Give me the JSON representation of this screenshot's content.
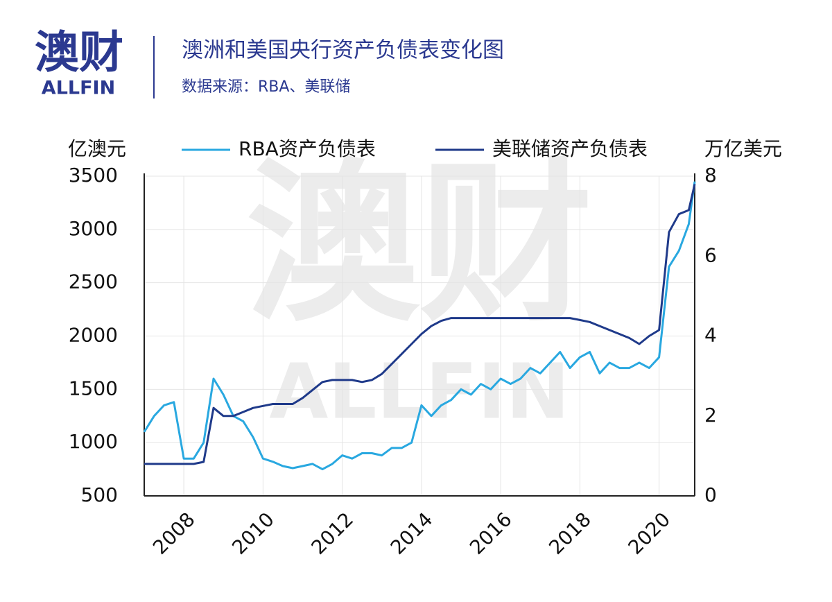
{
  "logo": {
    "mark": "澳财",
    "name": "ALLFIN"
  },
  "chart_data": {
    "type": "line",
    "title": "澳洲和美国央行资产负债表变化图",
    "subtitle": "数据来源：RBA、美联储",
    "y_label": "亿澳元",
    "y2_label": "万亿美元",
    "x": [
      2007,
      2007.25,
      2007.5,
      2007.75,
      2008,
      2008.25,
      2008.5,
      2008.75,
      2009,
      2009.25,
      2009.5,
      2009.75,
      2010,
      2010.25,
      2010.5,
      2010.75,
      2011,
      2011.25,
      2011.5,
      2011.75,
      2012,
      2012.25,
      2012.5,
      2012.75,
      2013,
      2013.25,
      2013.5,
      2013.75,
      2014,
      2014.25,
      2014.5,
      2014.75,
      2015,
      2015.25,
      2015.5,
      2015.75,
      2016,
      2016.25,
      2016.5,
      2016.75,
      2017,
      2017.25,
      2017.5,
      2017.75,
      2018,
      2018.25,
      2018.5,
      2018.75,
      2019,
      2019.25,
      2019.5,
      2019.75,
      2020,
      2020.25,
      2020.5,
      2020.75,
      2020.9
    ],
    "xlim": [
      2007,
      2020.9
    ],
    "xticks": [
      2008,
      2010,
      2012,
      2014,
      2016,
      2018,
      2020
    ],
    "ylim": [
      500,
      3500
    ],
    "yticks": [
      500,
      1000,
      1500,
      2000,
      2500,
      3000,
      3500
    ],
    "y2lim": [
      0,
      8
    ],
    "y2ticks": [
      0,
      2,
      4,
      6,
      8
    ],
    "grid": true,
    "series": [
      {
        "name": "RBA资产负债表",
        "color": "#29a8e0",
        "values": [
          1100,
          1250,
          1350,
          1380,
          850,
          850,
          1000,
          1600,
          1450,
          1250,
          1200,
          1050,
          850,
          820,
          780,
          760,
          780,
          800,
          750,
          800,
          880,
          850,
          900,
          900,
          880,
          950,
          950,
          1000,
          1350,
          1250,
          1350,
          1400,
          1500,
          1450,
          1550,
          1500,
          1600,
          1550,
          1600,
          1700,
          1650,
          1750,
          1850,
          1700,
          1800,
          1850,
          1650,
          1750,
          1700,
          1700,
          1750,
          1700,
          1800,
          2650,
          2800,
          3050,
          3450
        ]
      },
      {
        "name": "美联储资产负债表",
        "color": "#1f3a8a",
        "axis": "y2",
        "values": [
          0.8,
          0.8,
          0.8,
          0.8,
          0.8,
          0.8,
          0.85,
          2.2,
          2.0,
          2.0,
          2.1,
          2.2,
          2.25,
          2.3,
          2.3,
          2.3,
          2.45,
          2.65,
          2.85,
          2.9,
          2.9,
          2.9,
          2.85,
          2.9,
          3.05,
          3.3,
          3.55,
          3.8,
          4.05,
          4.25,
          4.38,
          4.45,
          4.45,
          4.45,
          4.45,
          4.45,
          4.45,
          4.45,
          4.45,
          4.45,
          4.45,
          4.45,
          4.45,
          4.45,
          4.4,
          4.35,
          4.25,
          4.15,
          4.05,
          3.95,
          3.8,
          4.0,
          4.15,
          6.6,
          7.05,
          7.15,
          7.8
        ]
      }
    ]
  }
}
